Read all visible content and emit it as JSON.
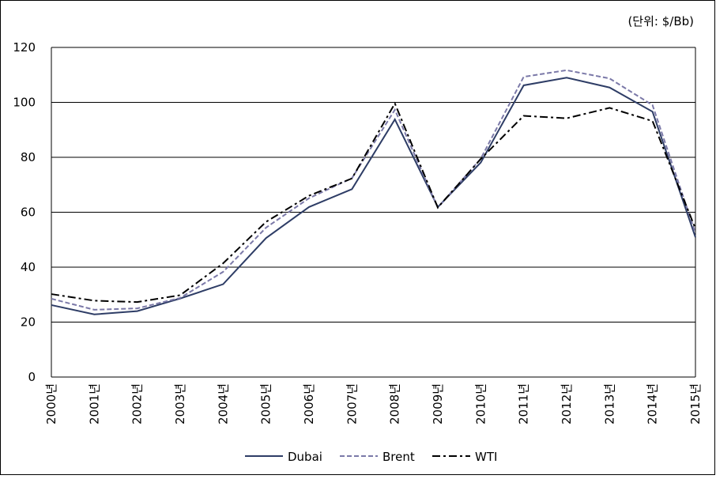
{
  "chart_data": {
    "type": "line",
    "unit_label": "(단위: $/Bb)",
    "categories": [
      "2000년",
      "2001년",
      "2002년",
      "2003년",
      "2004년",
      "2005년",
      "2006년",
      "2007년",
      "2008년",
      "2009년",
      "2010년",
      "2011년",
      "2012년",
      "2013년",
      "2014년",
      "2015년"
    ],
    "series": [
      {
        "name": "Dubai",
        "color": "#2e3d66",
        "dash": "",
        "values": [
          26.2,
          22.8,
          24.0,
          28.6,
          33.8,
          50.6,
          61.9,
          68.4,
          93.8,
          61.9,
          78.1,
          106.2,
          109.0,
          105.4,
          96.6,
          50.9
        ]
      },
      {
        "name": "Brent",
        "color": "#7b79a8",
        "dash": "6,3",
        "values": [
          28.5,
          24.5,
          25.0,
          28.8,
          38.3,
          54.4,
          65.1,
          72.4,
          97.3,
          61.7,
          79.5,
          109.3,
          111.7,
          108.7,
          99.0,
          52.4
        ]
      },
      {
        "name": "WTI",
        "color": "#000000",
        "dash": "10,4,3,4",
        "values": [
          30.2,
          27.8,
          27.3,
          29.8,
          41.4,
          56.5,
          66.0,
          72.3,
          99.6,
          61.7,
          79.4,
          95.1,
          94.2,
          98.0,
          93.2,
          54.0
        ]
      }
    ],
    "ylim": [
      0,
      120
    ],
    "yticks": [
      0,
      20,
      40,
      60,
      80,
      100,
      120
    ],
    "grid": true
  }
}
